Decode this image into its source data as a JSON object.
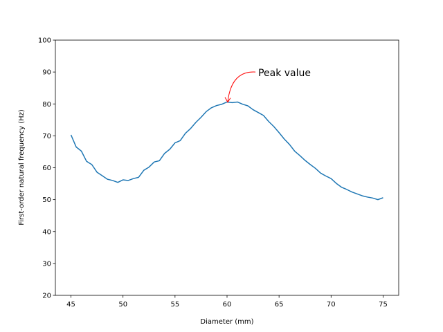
{
  "chart_data": {
    "type": "line",
    "title": "",
    "xlabel": "Diameter (mm)",
    "ylabel": "First-order natural frequency (Hz)",
    "xlim": [
      43.5,
      76.5
    ],
    "ylim": [
      20,
      100
    ],
    "xticks": [
      45,
      50,
      55,
      60,
      65,
      70,
      75
    ],
    "yticks": [
      20,
      30,
      40,
      50,
      60,
      70,
      80,
      90,
      100
    ],
    "grid": false,
    "series": [
      {
        "color": "#1f77b4",
        "x": [
          45,
          45.5,
          46,
          46.5,
          47,
          47.5,
          48,
          48.5,
          49,
          49.5,
          50,
          50.5,
          51,
          51.5,
          52,
          52.5,
          53,
          53.5,
          54,
          54.5,
          55,
          55.5,
          56,
          56.5,
          57,
          57.5,
          58,
          58.5,
          59,
          59.5,
          60,
          60.5,
          61,
          61.5,
          62,
          62.5,
          63,
          63.5,
          64,
          64.5,
          65,
          65.5,
          66,
          66.5,
          67,
          67.5,
          68,
          68.5,
          69,
          69.5,
          70,
          70.5,
          71,
          71.5,
          72,
          72.5,
          73,
          73.5,
          74,
          74.5,
          75
        ],
        "y": [
          70.3,
          66.5,
          65.2,
          62.0,
          61.0,
          58.6,
          57.5,
          56.4,
          56.0,
          55.4,
          56.2,
          56.0,
          56.6,
          57.0,
          59.2,
          60.2,
          61.8,
          62.2,
          64.5,
          65.8,
          67.8,
          68.5,
          70.8,
          72.3,
          74.2,
          75.8,
          77.6,
          78.8,
          79.5,
          79.9,
          80.6,
          80.4,
          80.6,
          79.9,
          79.4,
          78.2,
          77.3,
          76.4,
          74.5,
          72.9,
          71.0,
          69.0,
          67.3,
          65.2,
          63.8,
          62.3,
          61.0,
          59.8,
          58.3,
          57.4,
          56.6,
          55.1,
          53.9,
          53.2,
          52.4,
          51.8,
          51.2,
          50.8,
          50.5,
          50.0,
          50.6
        ]
      }
    ],
    "annotations": [
      {
        "text": "Peak value",
        "point": [
          60,
          81
        ],
        "text_pos": [
          63,
          90
        ],
        "color": "#ff0000"
      }
    ]
  }
}
